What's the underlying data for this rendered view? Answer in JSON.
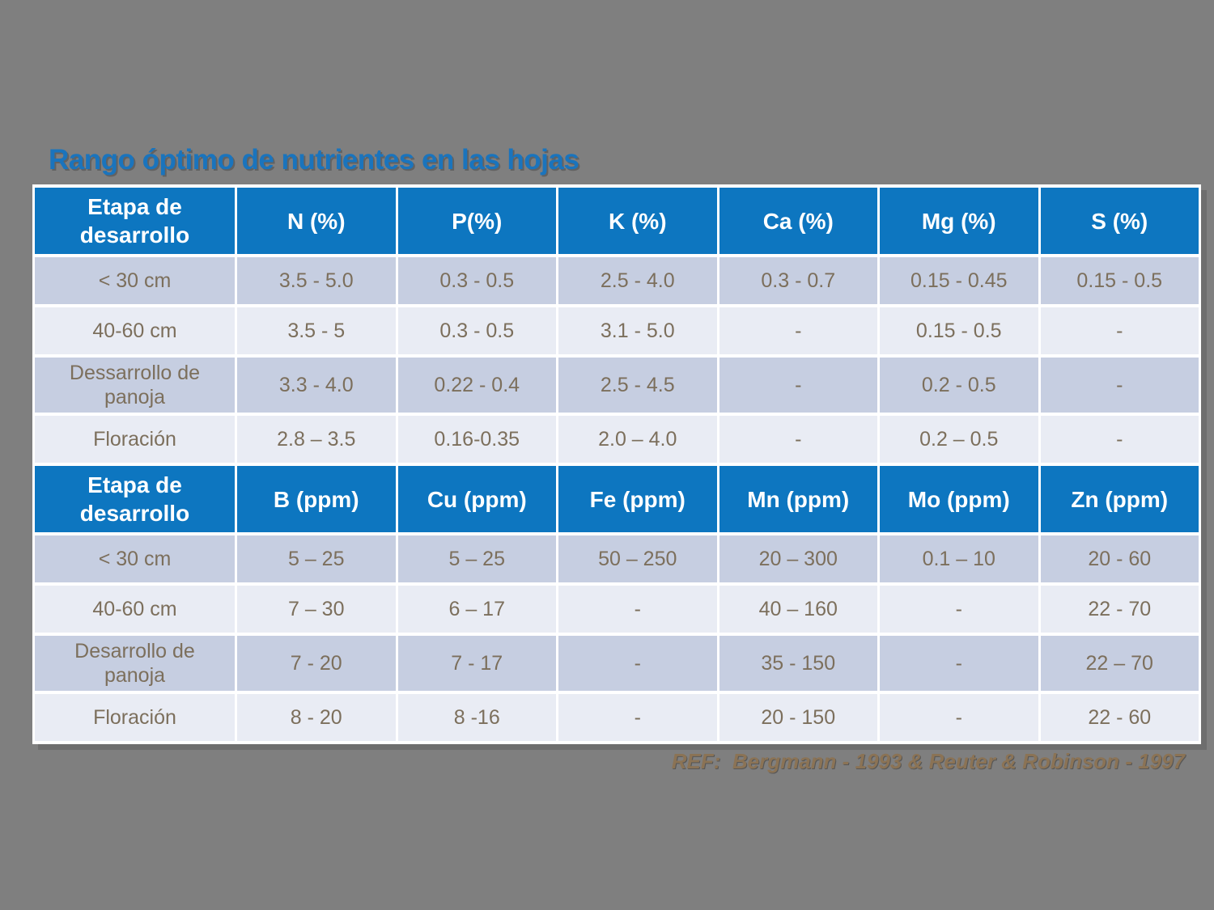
{
  "slide": {
    "title": "Rango óptimo de nutrientes en las hojas",
    "reference": "REF:  Bergmann - 1993 & Reuter & Robinson - 1997"
  },
  "colors": {
    "background": "#7f7f7f",
    "title_text": "#1a74bd",
    "header_bg": "#0d76c0",
    "header_text": "#ffffff",
    "row_dark": "#c6cee1",
    "row_light": "#e9ecf4",
    "cell_text": "#7c6f5c",
    "reference_text": "#8b7355"
  },
  "tables": [
    {
      "headers": [
        "Etapa de desarrollo",
        "N (%)",
        "P(%)",
        "K (%)",
        "Ca (%)",
        "Mg (%)",
        "S (%)"
      ],
      "rows": [
        [
          "< 30 cm",
          "3.5 - 5.0",
          "0.3 - 0.5",
          "2.5 - 4.0",
          "0.3 - 0.7",
          "0.15 - 0.45",
          "0.15 - 0.5"
        ],
        [
          "40-60 cm",
          "3.5 - 5",
          "0.3 - 0.5",
          "3.1 - 5.0",
          "-",
          "0.15 - 0.5",
          "-"
        ],
        [
          "Dessarrollo de panoja",
          "3.3 - 4.0",
          "0.22 - 0.4",
          "2.5 - 4.5",
          "-",
          "0.2 - 0.5",
          "-"
        ],
        [
          "Floración",
          "2.8 – 3.5",
          "0.16-0.35",
          "2.0 – 4.0",
          "-",
          "0.2 – 0.5",
          "-"
        ]
      ]
    },
    {
      "headers": [
        "Etapa de desarrollo",
        "B (ppm)",
        "Cu (ppm)",
        "Fe (ppm)",
        "Mn (ppm)",
        "Mo (ppm)",
        "Zn (ppm)"
      ],
      "rows": [
        [
          "< 30 cm",
          "5 – 25",
          "5 – 25",
          "50 – 250",
          "20 – 300",
          "0.1 – 10",
          "20 - 60"
        ],
        [
          "40-60 cm",
          "7 – 30",
          "6 – 17",
          "-",
          "40 – 160",
          "-",
          "22 - 70"
        ],
        [
          "Desarrollo de panoja",
          "7 - 20",
          "7 - 17",
          "-",
          "35 - 150",
          "-",
          "22 – 70"
        ],
        [
          "Floración",
          "8 - 20",
          "8 -16",
          "-",
          "20 - 150",
          "-",
          "22 - 60"
        ]
      ]
    }
  ]
}
